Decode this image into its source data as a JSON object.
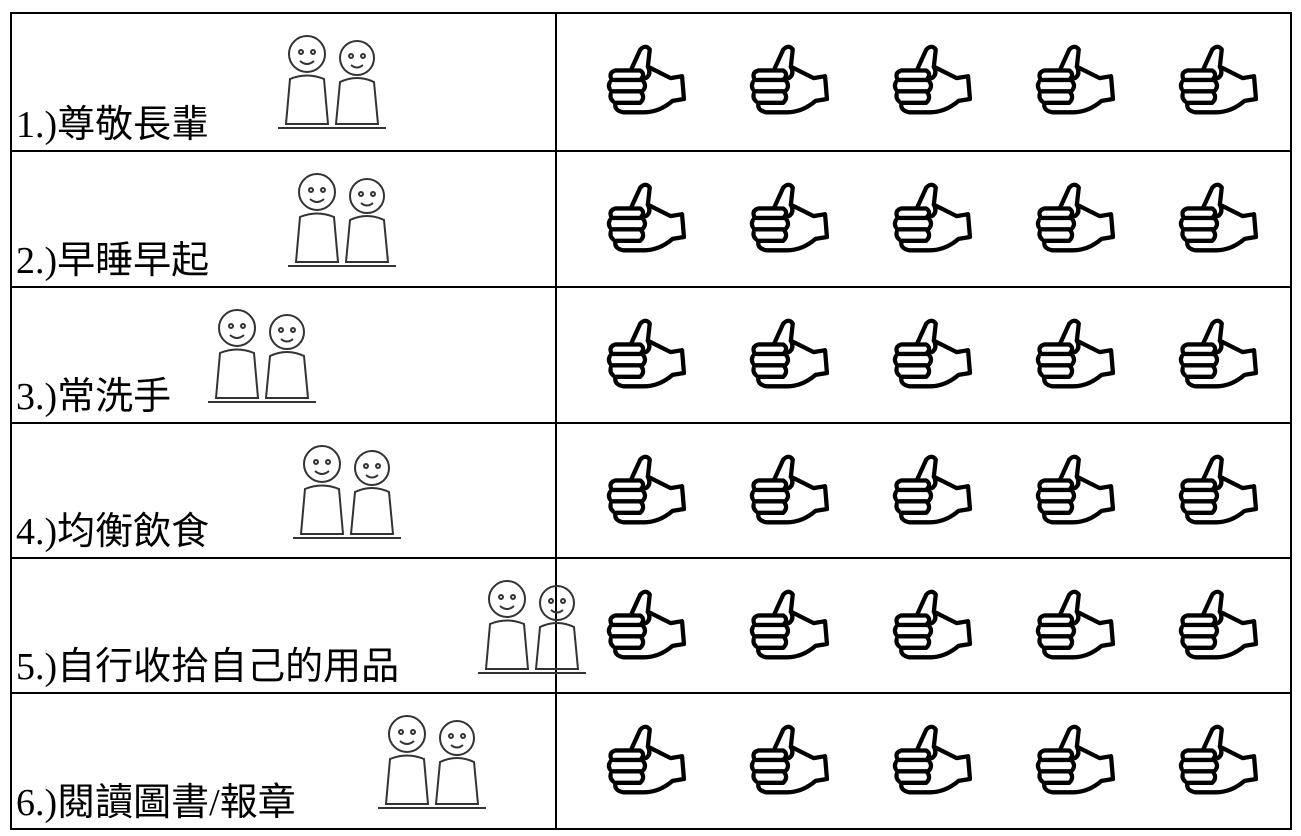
{
  "table": {
    "rows": [
      {
        "label": "1.)尊敬長輩"
      },
      {
        "label": "2.)早睡早起"
      },
      {
        "label": "3.)常洗手"
      },
      {
        "label": "4.)均衡飲食"
      },
      {
        "label": "5.)自行收拾自己的用品"
      },
      {
        "label": "6.)閱讀圖書/報章"
      }
    ]
  }
}
